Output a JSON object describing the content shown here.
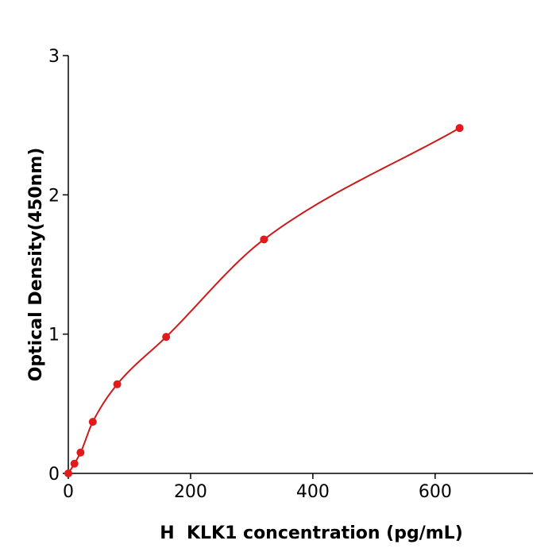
{
  "chart_data": {
    "type": "scatter",
    "title": "",
    "xlabel": "H  KLK1 concentration (pg/mL)",
    "ylabel": "Optical Density(450nm)",
    "xlim": [
      0,
      760
    ],
    "ylim": [
      0,
      3
    ],
    "x_ticks": [
      "0",
      "200",
      "400",
      "600"
    ],
    "y_ticks": [
      "0",
      "1",
      "2",
      "3"
    ],
    "grid": false,
    "legend": "none",
    "series": [
      {
        "points": [
          {
            "x": 0,
            "y": 0.0
          },
          {
            "x": 10,
            "y": 0.07
          },
          {
            "x": 20,
            "y": 0.15
          },
          {
            "x": 40,
            "y": 0.37
          },
          {
            "x": 80,
            "y": 0.64
          },
          {
            "x": 160,
            "y": 0.98
          },
          {
            "x": 320,
            "y": 1.68
          },
          {
            "x": 640,
            "y": 2.48
          }
        ],
        "fit_curve": true,
        "color": "#e31a1c",
        "curve_color": "#cc1a1a"
      }
    ]
  }
}
